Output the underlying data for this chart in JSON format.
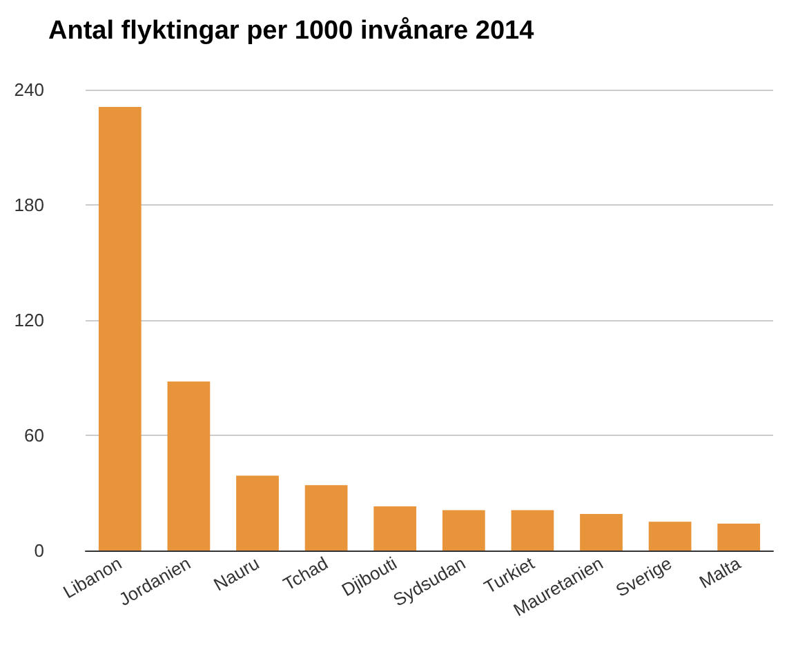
{
  "chart_data": {
    "type": "bar",
    "title": "Antal flyktingar per 1000 invånare 2014",
    "categories": [
      "Libanon",
      "Jordanien",
      "Nauru",
      "Tchad",
      "Djibouti",
      "Sydsudan",
      "Turkiet",
      "Mauretanien",
      "Sverige",
      "Malta"
    ],
    "values": [
      231,
      88,
      39,
      34,
      23,
      21,
      21,
      19,
      15,
      14
    ],
    "color": "#e8943a",
    "ylim": [
      0,
      240
    ],
    "yticks": [
      0,
      60,
      120,
      180,
      240
    ],
    "grid": "y"
  }
}
